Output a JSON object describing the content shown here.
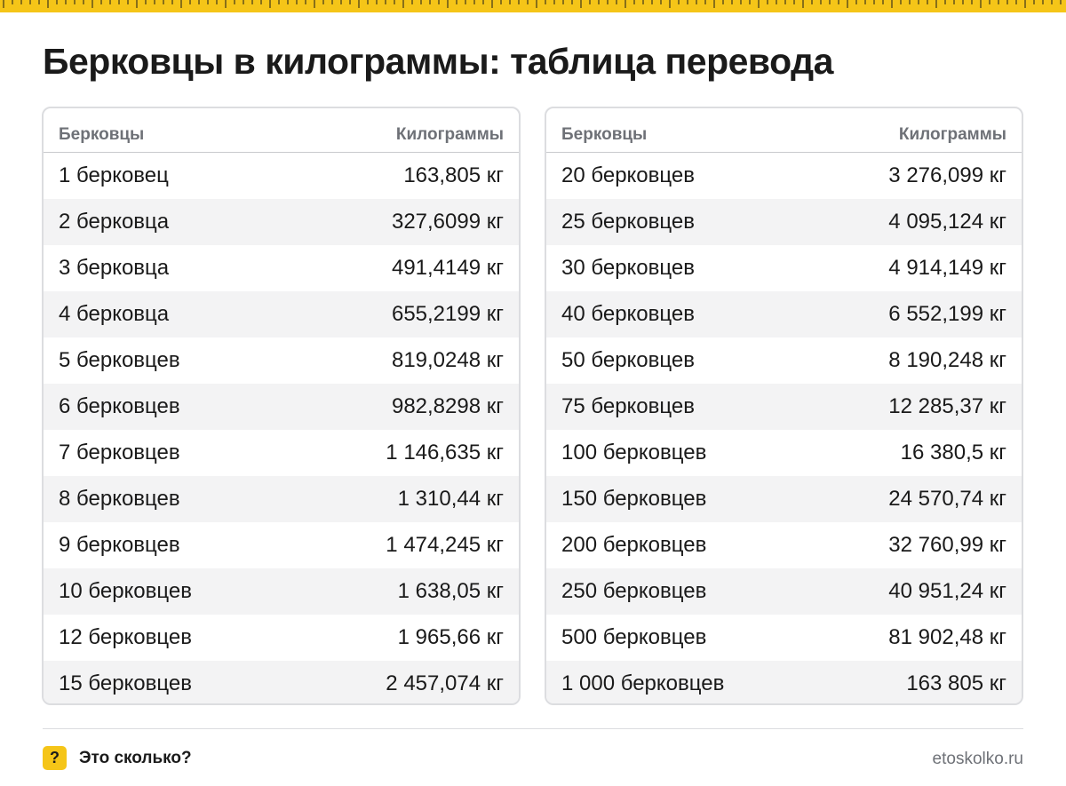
{
  "title": "Берковцы в килограммы: таблица перевода",
  "colors": {
    "accent": "#f5c518",
    "border": "#dcdde0",
    "stripe": "#f3f3f4",
    "header_text": "#6e7177"
  },
  "tables": [
    {
      "header": {
        "col1": "Берковцы",
        "col2": "Килограммы"
      },
      "rows": [
        {
          "unit": "1 берковец",
          "kg": "163,805 кг"
        },
        {
          "unit": "2 берковца",
          "kg": "327,6099 кг"
        },
        {
          "unit": "3 берковца",
          "kg": "491,4149 кг"
        },
        {
          "unit": "4 берковца",
          "kg": "655,2199 кг"
        },
        {
          "unit": "5 берковцев",
          "kg": "819,0248 кг"
        },
        {
          "unit": "6 берковцев",
          "kg": "982,8298 кг"
        },
        {
          "unit": "7 берковцев",
          "kg": "1 146,635 кг"
        },
        {
          "unit": "8 берковцев",
          "kg": "1 310,44 кг"
        },
        {
          "unit": "9 берковцев",
          "kg": "1 474,245 кг"
        },
        {
          "unit": "10 берковцев",
          "kg": "1 638,05 кг"
        },
        {
          "unit": "12 берковцев",
          "kg": "1 965,66 кг"
        },
        {
          "unit": "15 берковцев",
          "kg": "2 457,074 кг"
        }
      ]
    },
    {
      "header": {
        "col1": "Берковцы",
        "col2": "Килограммы"
      },
      "rows": [
        {
          "unit": "20 берковцев",
          "kg": "3 276,099 кг"
        },
        {
          "unit": "25 берковцев",
          "kg": "4 095,124 кг"
        },
        {
          "unit": "30 берковцев",
          "kg": "4 914,149 кг"
        },
        {
          "unit": "40 берковцев",
          "kg": "6 552,199 кг"
        },
        {
          "unit": "50 берковцев",
          "kg": "8 190,248 кг"
        },
        {
          "unit": "75 берковцев",
          "kg": "12 285,37 кг"
        },
        {
          "unit": "100 берковцев",
          "kg": "16 380,5 кг"
        },
        {
          "unit": "150 берковцев",
          "kg": "24 570,74 кг"
        },
        {
          "unit": "200 берковцев",
          "kg": "32 760,99 кг"
        },
        {
          "unit": "250 берковцев",
          "kg": "40 951,24 кг"
        },
        {
          "unit": "500 берковцев",
          "kg": "81 902,48 кг"
        },
        {
          "unit": "1 000 берковцев",
          "kg": "163 805 кг"
        }
      ]
    }
  ],
  "footer": {
    "badge_icon": "question-mark-icon",
    "badge_glyph": "?",
    "brand": "Это сколько?",
    "site": "etoskolko.ru"
  }
}
